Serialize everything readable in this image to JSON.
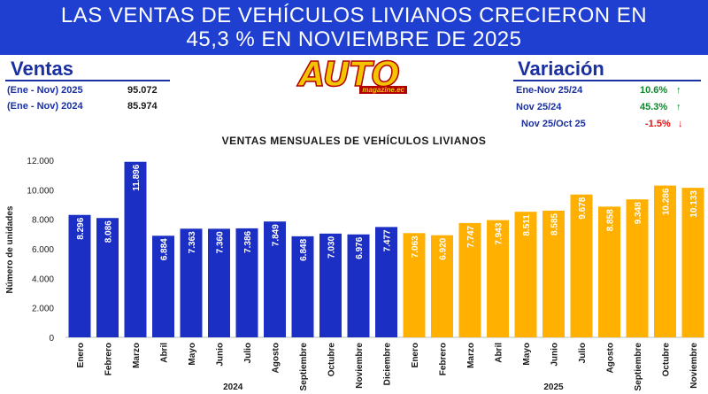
{
  "banner": {
    "line1": "LAS VENTAS DE VEHÍCULOS LIVIANOS CRECIERON EN",
    "line2": "45,3 % EN NOVIEMBRE DE 2025"
  },
  "ventas": {
    "title": "Ventas",
    "rows": [
      {
        "label": "(Ene - Nov) 2025",
        "value": "95.072"
      },
      {
        "label": "(Ene - Nov) 2024",
        "value": "85.974"
      }
    ]
  },
  "logo": {
    "text": "AUTO",
    "sub": "magazine.ec"
  },
  "variacion": {
    "title": "Variación",
    "rows": [
      {
        "label": "Ene-Nov 25/24",
        "value": "10.6%",
        "arrow": "↑"
      },
      {
        "label": "Nov 25/24",
        "value": "45.3%",
        "arrow": "↑"
      },
      {
        "label": "Nov 25/Oct 25",
        "value": "-1.5%",
        "arrow": "↓"
      }
    ]
  },
  "colors": {
    "year_2024": "#1b2fc4",
    "year_2025": "#ffb000",
    "banner": "#1f3fd0",
    "positive": "#0a8a2a",
    "negative": "#e01010"
  },
  "chart_data": {
    "type": "bar",
    "title": "VENTAS MENSUALES DE VEHÍCULOS LIVIANOS",
    "ylabel": "Número de unidades",
    "xlabel": "",
    "ylim": [
      0,
      12000
    ],
    "yticks": [
      "0",
      "2.000",
      "4.000",
      "6.000",
      "8.000",
      "10.000",
      "12.000"
    ],
    "grid": false,
    "groups": [
      {
        "name": "2024",
        "categories": [
          "Enero",
          "Febrero",
          "Marzo",
          "Abril",
          "Mayo",
          "Junio",
          "Julio",
          "Agosto",
          "Septiembre",
          "Octubre",
          "Noviembre",
          "Diciembre"
        ],
        "values": [
          8296,
          8086,
          11896,
          6884,
          7363,
          7360,
          7386,
          7849,
          6848,
          7030,
          6976,
          7477
        ],
        "labels": [
          "8.296",
          "8.086",
          "11.896",
          "6.884",
          "7.363",
          "7.360",
          "7.386",
          "7.849",
          "6.848",
          "7.030",
          "6.976",
          "7.477"
        ]
      },
      {
        "name": "2025",
        "categories": [
          "Enero",
          "Febrero",
          "Marzo",
          "Abril",
          "Mayo",
          "Junio",
          "Julio",
          "Agosto",
          "Septiembre",
          "Octubre",
          "Noviembre"
        ],
        "values": [
          7063,
          6920,
          7747,
          7943,
          8511,
          8585,
          9678,
          8858,
          9348,
          10286,
          10133
        ],
        "labels": [
          "7.063",
          "6.920",
          "7.747",
          "7.943",
          "8.511",
          "8.585",
          "9.678",
          "8.858",
          "9.348",
          "10.286",
          "10.133"
        ]
      }
    ]
  }
}
